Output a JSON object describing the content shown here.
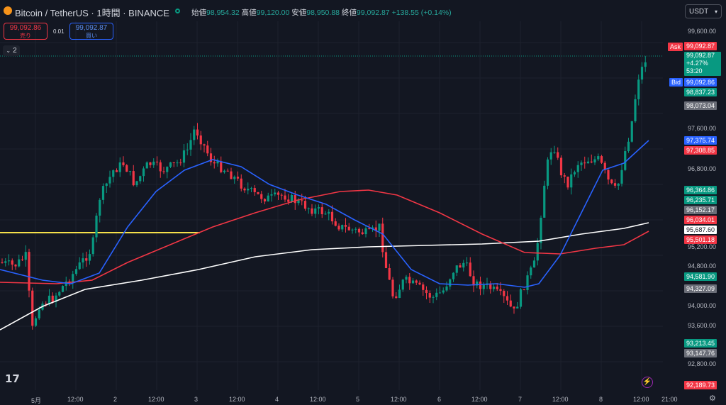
{
  "header": {
    "title": "Bitcoin / TetherUS · 1時間 · BINANCE",
    "open_label": "始値",
    "open_value": "98,954.32",
    "high_label": "高値",
    "high_value": "99,120.00",
    "low_label": "安値",
    "low_value": "98,950.88",
    "close_label": "終値",
    "close_value": "99,092.87",
    "change": "+138.55 (+0.14%)",
    "currency": "USDT"
  },
  "trade": {
    "sell_price": "99,092.86",
    "sell_label": "売り",
    "spread": "0.01",
    "buy_price": "99,092.87",
    "buy_label": "買い",
    "indicator_count": "2"
  },
  "price_axis": {
    "ticks": [
      "99,600.00",
      "97,600.00",
      "96,800.00",
      "95,200.00",
      "94,800.00",
      "94,000.00",
      "93,600.00",
      "92,800.00"
    ]
  },
  "price_tags": {
    "ask_label": "Ask",
    "ask_price": "99,092.87",
    "current_price": "99,092.87",
    "current_change": "+4.27%",
    "current_countdown": "53:20",
    "bid_label": "Bid",
    "bid_price": "99,092.86",
    "tag_98837": "98,837.23",
    "tag_98073": "98,073.04",
    "tag_97375": "97,375.74",
    "tag_97308": "97,308.85",
    "tag_96364": "96,364.86",
    "tag_96235": "96,235.71",
    "tag_96152": "96,152.17",
    "tag_96034": "96,034.01",
    "tag_95687": "95,687.60",
    "tag_95501": "95,501.18",
    "tag_94581": "94,581.90",
    "tag_94327": "94,327.09",
    "tag_93213": "93,213.45",
    "tag_93147": "93,147.76",
    "tag_92189": "92,189.73"
  },
  "time_axis": {
    "labels": [
      "5月",
      "12:00",
      "2",
      "12:00",
      "3",
      "12:00",
      "4",
      "12:00",
      "5",
      "12:00",
      "6",
      "12:00",
      "7",
      "12:00",
      "8",
      "12:00",
      "21:00"
    ]
  },
  "colors": {
    "background": "#131722",
    "up": "#089981",
    "down": "#f23645",
    "ma_fast": "#2962ff",
    "ma_mid": "#f23645",
    "ma_slow": "#ffffff",
    "hline": "#f5e04a"
  },
  "icons": {
    "coin": "bitcoin-icon",
    "logo": "tradingview-logo",
    "flash": "lightning-icon",
    "settings": "gear-icon"
  }
}
